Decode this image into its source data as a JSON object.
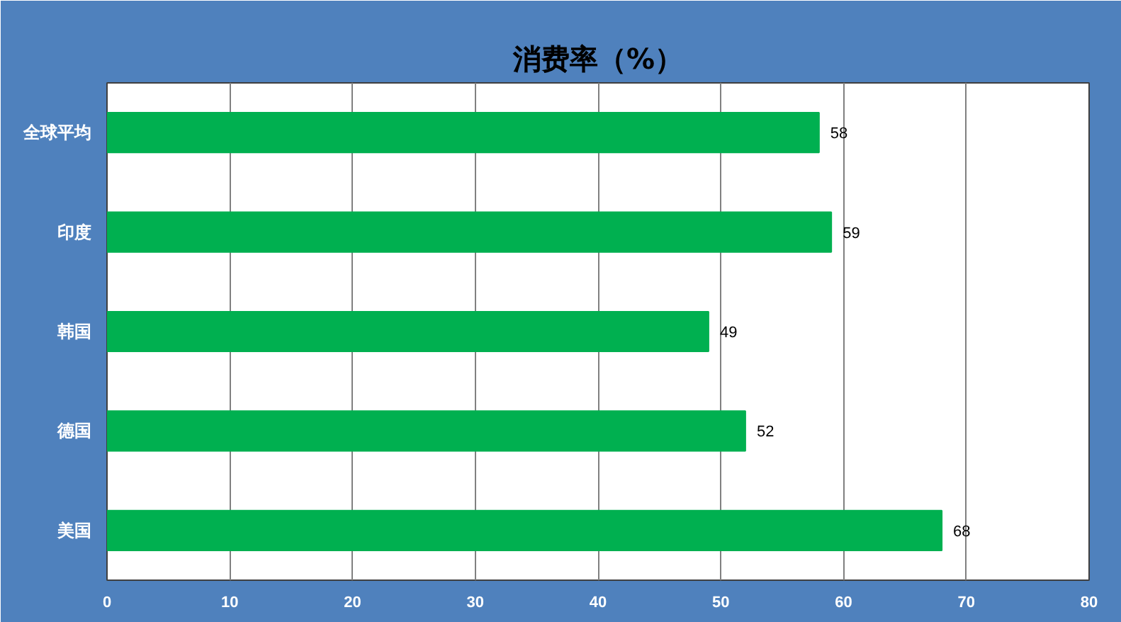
{
  "chart_data": {
    "type": "bar",
    "orientation": "horizontal",
    "title": "消费率（%）",
    "categories": [
      "全球平均",
      "印度",
      "韩国",
      "德国",
      "美国"
    ],
    "values": [
      58,
      59,
      49,
      52,
      68
    ],
    "color": "#00b050",
    "xlim": [
      0,
      80
    ],
    "xticks": [
      0,
      10,
      20,
      30,
      40,
      50,
      60,
      70,
      80
    ],
    "grid": "x",
    "data_labels": true
  }
}
